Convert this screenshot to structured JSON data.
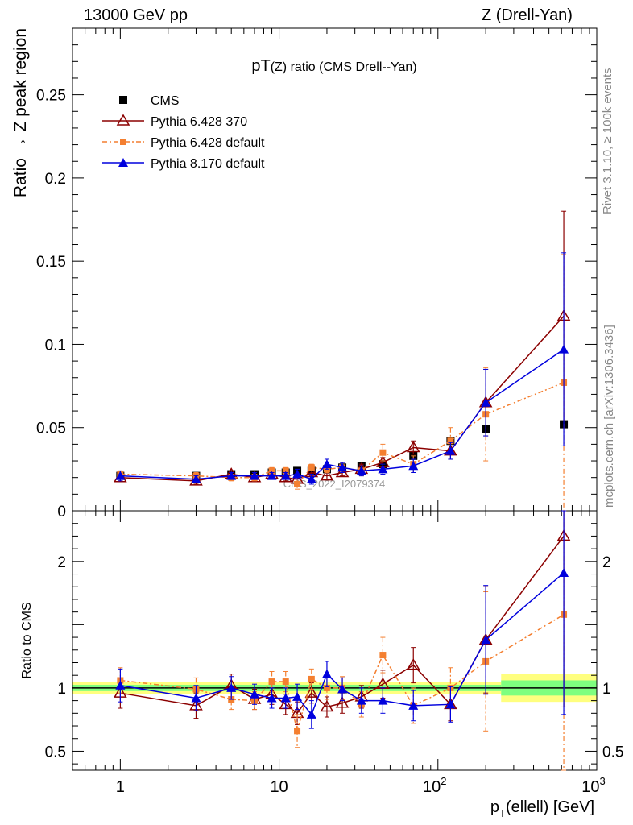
{
  "header": {
    "left": "13000 GeV pp",
    "right": "Z (Drell-Yan)"
  },
  "side_labels": {
    "rivet": "Rivet 3.1.10, ≥ 100k events",
    "mcplots": "mcplots.cern.ch [arXiv:1306.3436]"
  },
  "chart_data": {
    "type": "scatter",
    "title": "pT(Z) ratio (CMS Drell--Yan)",
    "xlabel": "p_T(ellell) [GeV]",
    "x_scale": "log",
    "xlim": [
      0.5,
      1000
    ],
    "x_ticks": [
      "1",
      "10",
      "10^2",
      "10^3"
    ],
    "watermark": "CMS_2022_I2079374",
    "legend_position": "top-left",
    "main_panel": {
      "ylabel": "Ratio → Z peak region",
      "ylim": [
        0,
        0.29
      ],
      "y_ticks": [
        "0",
        "0.05",
        "0.1",
        "0.15",
        "0.2",
        "0.25"
      ],
      "series": [
        {
          "name": "CMS",
          "color": "#000000",
          "marker": "square",
          "x": [
            1,
            3,
            5,
            7,
            9,
            11,
            13,
            16,
            20,
            25,
            33,
            45,
            70,
            120,
            200,
            620
          ],
          "y": [
            0.021,
            0.021,
            0.022,
            0.022,
            0.023,
            0.023,
            0.024,
            0.024,
            0.025,
            0.026,
            0.027,
            0.028,
            0.033,
            0.042,
            0.049,
            0.052
          ]
        },
        {
          "name": "Pythia 6.428 370",
          "color": "#8b0000",
          "marker": "open-triangle",
          "line": "solid",
          "x": [
            1,
            3,
            5,
            7,
            9,
            11,
            13,
            16,
            20,
            25,
            33,
            45,
            70,
            120,
            200,
            620
          ],
          "y": [
            0.02,
            0.018,
            0.022,
            0.02,
            0.022,
            0.02,
            0.019,
            0.023,
            0.021,
            0.023,
            0.025,
            0.029,
            0.038,
            0.036,
            0.065,
            0.117
          ],
          "err": [
            0.002,
            0.002,
            0.002,
            0.002,
            0.002,
            0.002,
            0.002,
            0.002,
            0.002,
            0.002,
            0.003,
            0.003,
            0.004,
            0.005,
            0.02,
            0.063
          ]
        },
        {
          "name": "Pythia 6.428 default",
          "color": "#f47f30",
          "marker": "filled-square",
          "line": "dashdot",
          "x": [
            1,
            3,
            5,
            7,
            9,
            11,
            13,
            16,
            20,
            25,
            33,
            45,
            70,
            120,
            200,
            620
          ],
          "y": [
            0.022,
            0.021,
            0.02,
            0.02,
            0.024,
            0.024,
            0.016,
            0.026,
            0.025,
            0.026,
            0.024,
            0.035,
            0.028,
            0.042,
            0.058,
            0.077
          ],
          "err": [
            0.002,
            0.002,
            0.002,
            0.002,
            0.002,
            0.002,
            0.003,
            0.002,
            0.002,
            0.003,
            0.003,
            0.005,
            0.005,
            0.008,
            0.028,
            0.077
          ]
        },
        {
          "name": "Pythia 8.170 default",
          "color": "#0000dd",
          "marker": "filled-triangle",
          "line": "solid",
          "x": [
            1,
            3,
            5,
            7,
            9,
            11,
            13,
            16,
            20,
            25,
            33,
            45,
            70,
            120,
            200,
            620
          ],
          "y": [
            0.021,
            0.019,
            0.021,
            0.021,
            0.021,
            0.021,
            0.022,
            0.019,
            0.028,
            0.026,
            0.024,
            0.025,
            0.027,
            0.036,
            0.065,
            0.097
          ],
          "err": [
            0.003,
            0.002,
            0.002,
            0.002,
            0.002,
            0.002,
            0.003,
            0.003,
            0.003,
            0.003,
            0.003,
            0.003,
            0.004,
            0.005,
            0.02,
            0.058
          ]
        }
      ]
    },
    "ratio_panel": {
      "ylabel": "Ratio to CMS",
      "ylim": [
        0.35,
        2.4
      ],
      "y_ticks": [
        "0.5",
        "1",
        "2"
      ],
      "band_inner_color": "#7fff7f",
      "band_outer_color": "#ffff7f",
      "series": [
        {
          "name": "Pythia 6.428 370",
          "color": "#8b0000",
          "y": [
            0.96,
            0.86,
            1.02,
            0.91,
            0.95,
            0.87,
            0.8,
            0.96,
            0.85,
            0.88,
            0.93,
            1.03,
            1.18,
            0.87,
            1.38,
            2.2
          ],
          "err": [
            0.12,
            0.1,
            0.09,
            0.08,
            0.08,
            0.08,
            0.09,
            0.08,
            0.08,
            0.08,
            0.09,
            0.11,
            0.14,
            0.13,
            0.42,
            1.35
          ]
        },
        {
          "name": "Pythia 6.428 default",
          "color": "#f47f30",
          "y": [
            1.06,
            0.99,
            0.91,
            0.9,
            1.05,
            1.05,
            0.66,
            1.07,
            1.0,
            1.0,
            0.87,
            1.26,
            0.86,
            1.0,
            1.21,
            1.58
          ],
          "err": [
            0.1,
            0.09,
            0.08,
            0.07,
            0.08,
            0.08,
            0.13,
            0.08,
            0.09,
            0.09,
            0.1,
            0.14,
            0.14,
            0.16,
            0.55,
            1.55
          ]
        },
        {
          "name": "Pythia 8.170 default",
          "color": "#0000dd",
          "y": [
            1.02,
            0.92,
            1.0,
            0.95,
            0.92,
            0.92,
            0.93,
            0.79,
            1.11,
            0.99,
            0.9,
            0.9,
            0.86,
            0.87,
            1.38,
            1.91
          ],
          "err": [
            0.13,
            0.1,
            0.09,
            0.08,
            0.08,
            0.08,
            0.1,
            0.11,
            0.1,
            0.09,
            0.1,
            0.1,
            0.12,
            0.14,
            0.43,
            1.12
          ]
        }
      ]
    }
  }
}
